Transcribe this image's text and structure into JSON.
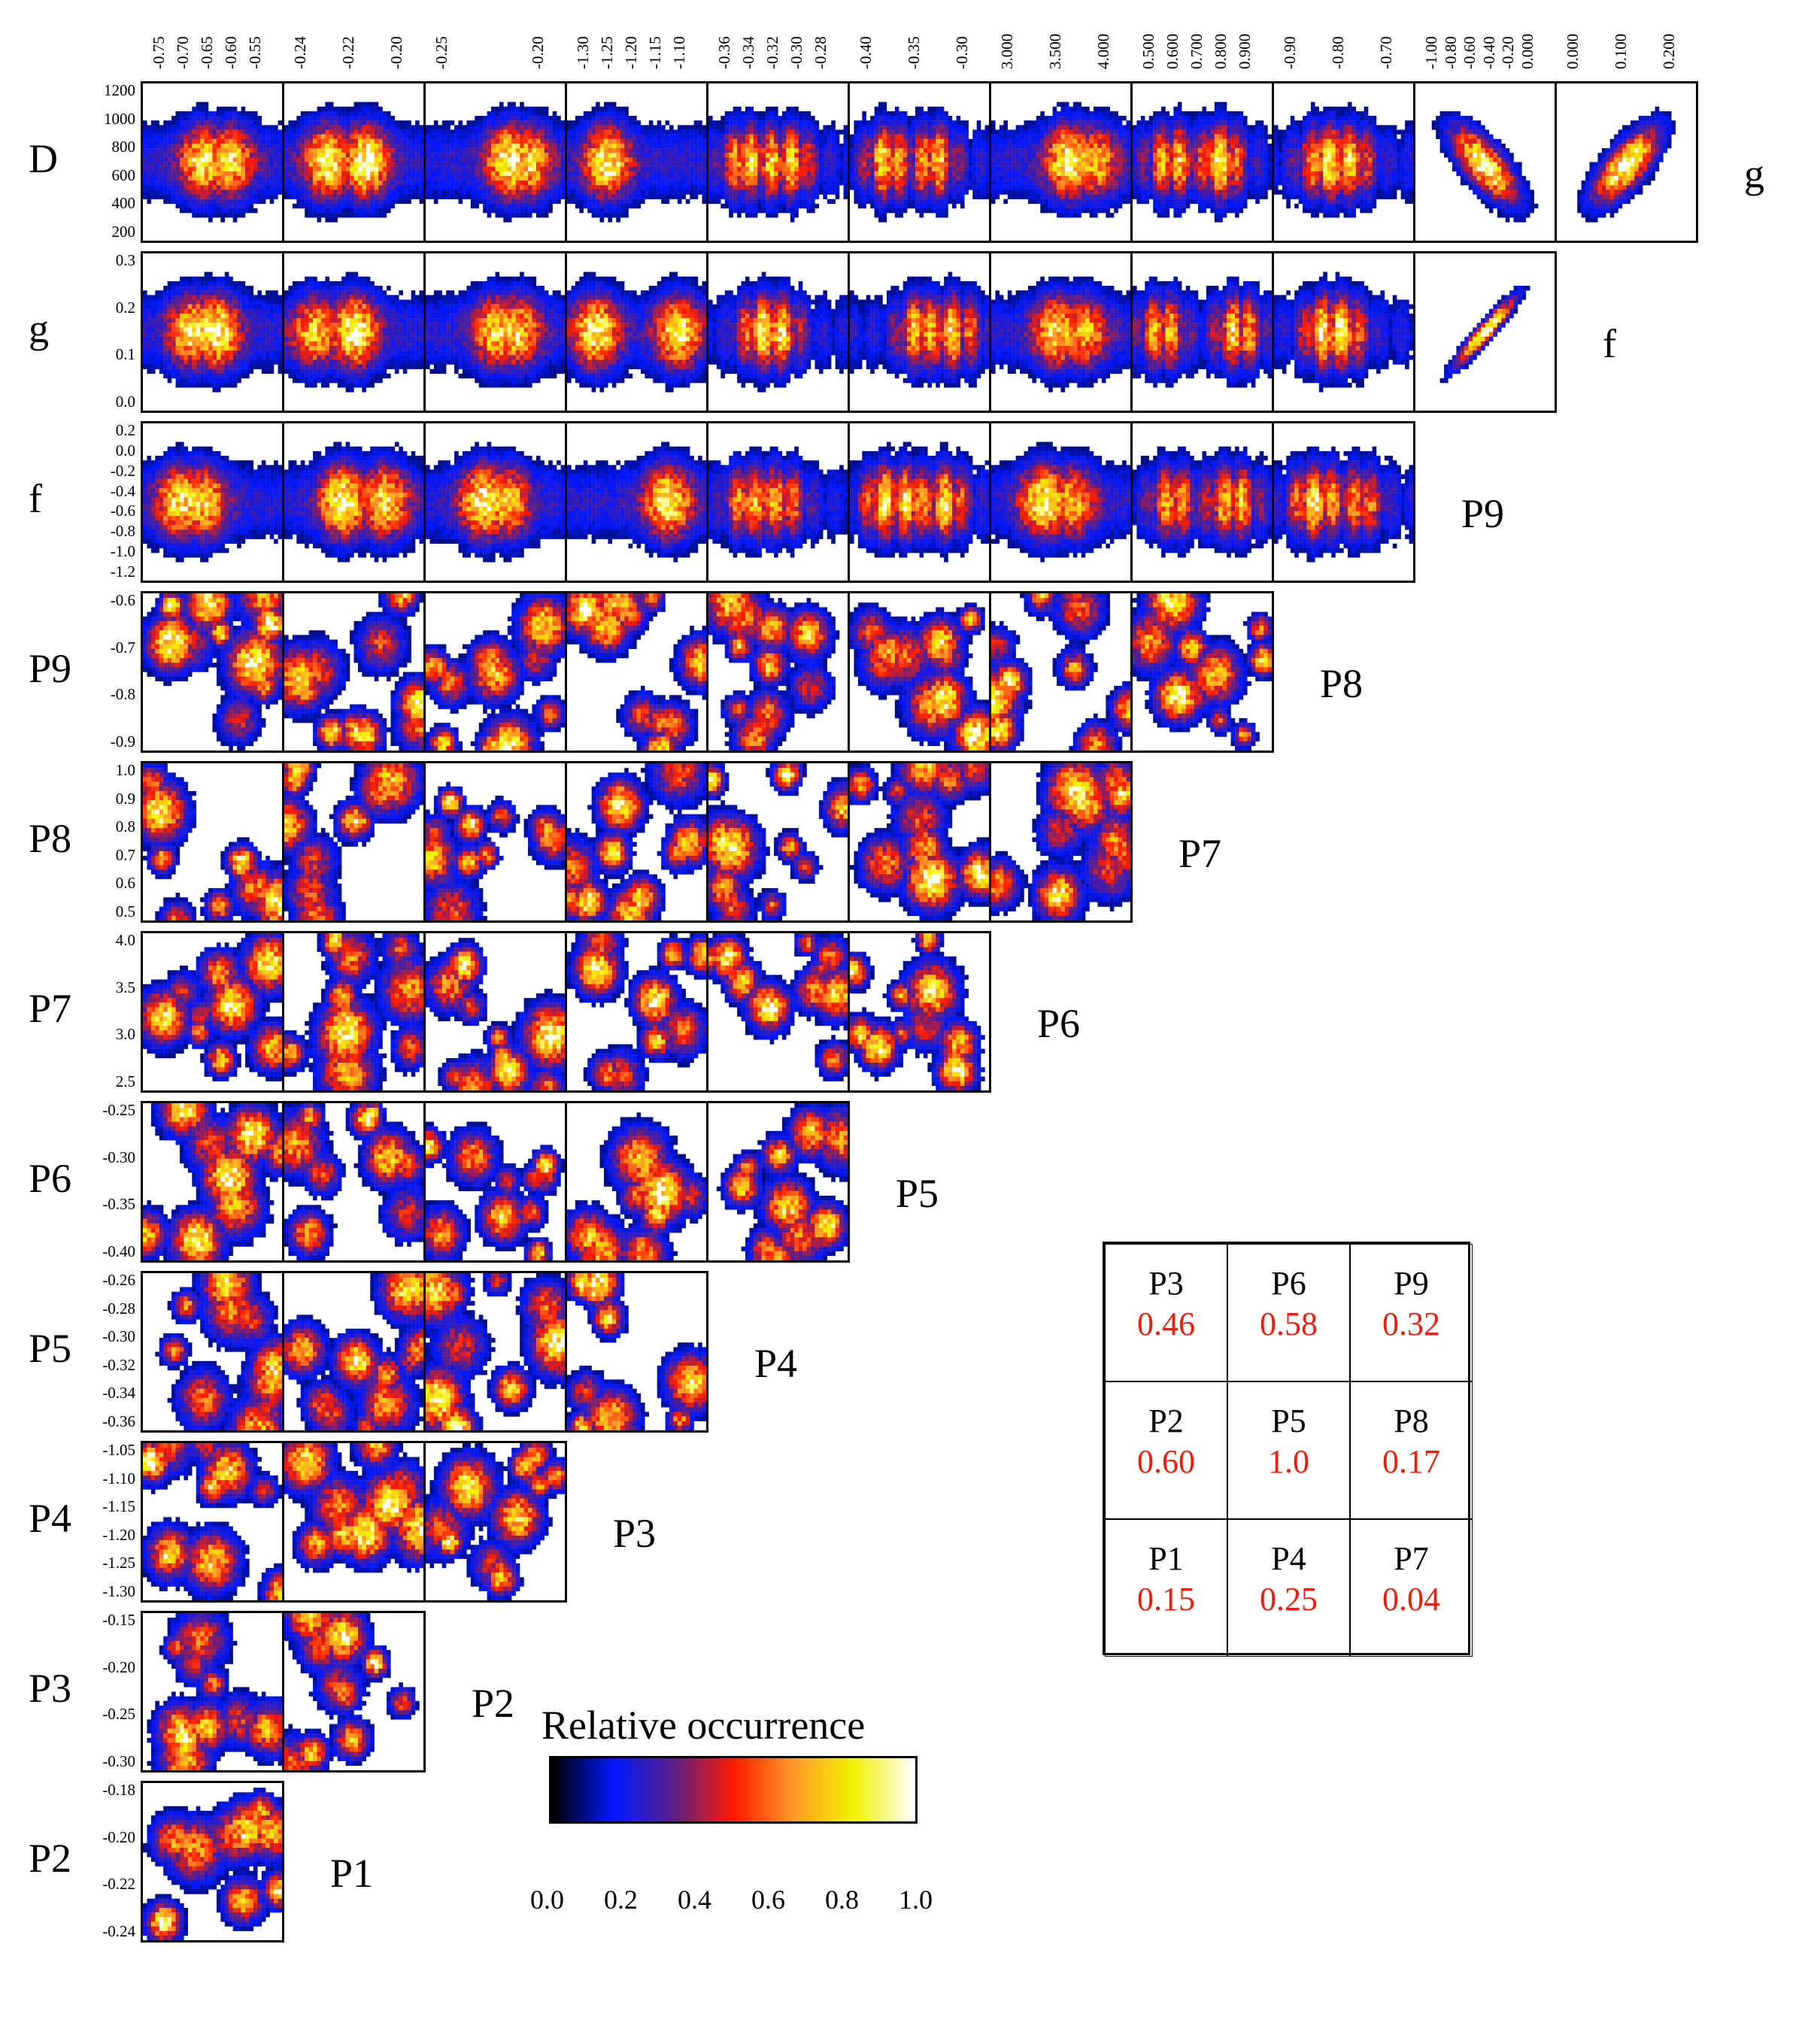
{
  "chart_data": {
    "type": "heatmap",
    "title": "",
    "parameters": [
      "D",
      "g",
      "f",
      "P9",
      "P8",
      "P7",
      "P6",
      "P5",
      "P4",
      "P3",
      "P2",
      "P1"
    ],
    "row_labels": [
      "D",
      "g",
      "f",
      "P9",
      "P8",
      "P7",
      "P6",
      "P5",
      "P4",
      "P3",
      "P2"
    ],
    "diagonal_labels": [
      "g",
      "f",
      "P9",
      "P8",
      "P7",
      "P6",
      "P5",
      "P4",
      "P3",
      "P2",
      "P1"
    ],
    "column_order": [
      "P1",
      "P2",
      "P3",
      "P4",
      "P5",
      "P6",
      "P7",
      "P8",
      "P9",
      "f",
      "g"
    ],
    "column_tick_labels": [
      [
        "-0.75",
        "-0.70",
        "-0.65",
        "-0.60",
        "-0.55"
      ],
      [
        "-0.24",
        "-0.22",
        "-0.20"
      ],
      [
        "-0.25",
        "-0.20"
      ],
      [
        "-1.30",
        "-1.25",
        "-1.20",
        "-1.15",
        "-1.10"
      ],
      [
        "-0.36",
        "-0.34",
        "-0.32",
        "-0.30",
        "-0.28"
      ],
      [
        "-0.40",
        "-0.35",
        "-0.30"
      ],
      [
        "3.000",
        "3.500",
        "4.000"
      ],
      [
        "0.500",
        "0.600",
        "0.700",
        "0.800",
        "0.900"
      ],
      [
        "-0.90",
        "-0.80",
        "-0.70"
      ],
      [
        "-1.00",
        "-0.80",
        "-0.60",
        "-0.40",
        "-0.20",
        "0.000"
      ],
      [
        "0.000",
        "0.100",
        "0.200"
      ]
    ],
    "row_tick_labels": [
      [
        "1200",
        "1000",
        "800",
        "600",
        "400",
        "200"
      ],
      [
        "0.3",
        "0.2",
        "0.1",
        "0.0"
      ],
      [
        "0.2",
        "0.0",
        "-0.2",
        "-0.4",
        "-0.6",
        "-0.8",
        "-1.0",
        "-1.2"
      ],
      [
        "-0.6",
        "-0.7",
        "-0.8",
        "-0.9"
      ],
      [
        "1.0",
        "0.9",
        "0.8",
        "0.7",
        "0.6",
        "0.5"
      ],
      [
        "4.0",
        "3.5",
        "3.0",
        "2.5"
      ],
      [
        "-0.25",
        "-0.30",
        "-0.35",
        "-0.40"
      ],
      [
        "-0.26",
        "-0.28",
        "-0.30",
        "-0.32",
        "-0.34",
        "-0.36"
      ],
      [
        "-1.05",
        "-1.10",
        "-1.15",
        "-1.20",
        "-1.25",
        "-1.30"
      ],
      [
        "-0.15",
        "-0.20",
        "-0.25",
        "-0.30"
      ],
      [
        "-0.18",
        "-0.20",
        "-0.22",
        "-0.24"
      ]
    ],
    "colorbar": {
      "title": "Relative occurrence",
      "ticks": [
        "0.0",
        "0.2",
        "0.4",
        "0.6",
        "0.8",
        "1.0"
      ],
      "range": [
        0.0,
        1.0
      ],
      "colors": [
        "#000000",
        "#0018ff",
        "#5a1f8a",
        "#ff1a00",
        "#ff9a28",
        "#f2f200",
        "#ffffff"
      ]
    },
    "panel_features": {
      "D": [
        "blob",
        "blob",
        "blob",
        "blob",
        "band",
        "band",
        "blob",
        "band",
        "band",
        "ellipse-pos",
        "ellipse-neg"
      ],
      "g": [
        "blob",
        "blob",
        "blob",
        "blob",
        "band",
        "band",
        "blob",
        "band",
        "band",
        "diagonal-neg"
      ],
      "f": [
        "blob",
        "blob",
        "blob",
        "blob",
        "band",
        "band",
        "blob",
        "band",
        "band"
      ]
    },
    "table": {
      "rows": [
        [
          {
            "name": "P3",
            "value": "0.46"
          },
          {
            "name": "P6",
            "value": "0.58"
          },
          {
            "name": "P9",
            "value": "0.32"
          }
        ],
        [
          {
            "name": "P2",
            "value": "0.60"
          },
          {
            "name": "P5",
            "value": "1.0"
          },
          {
            "name": "P8",
            "value": "0.17"
          }
        ],
        [
          {
            "name": "P1",
            "value": "0.15"
          },
          {
            "name": "P4",
            "value": "0.25"
          },
          {
            "name": "P7",
            "value": "0.04"
          }
        ]
      ],
      "name_color": "#000000",
      "value_color": "#e8200c"
    }
  }
}
